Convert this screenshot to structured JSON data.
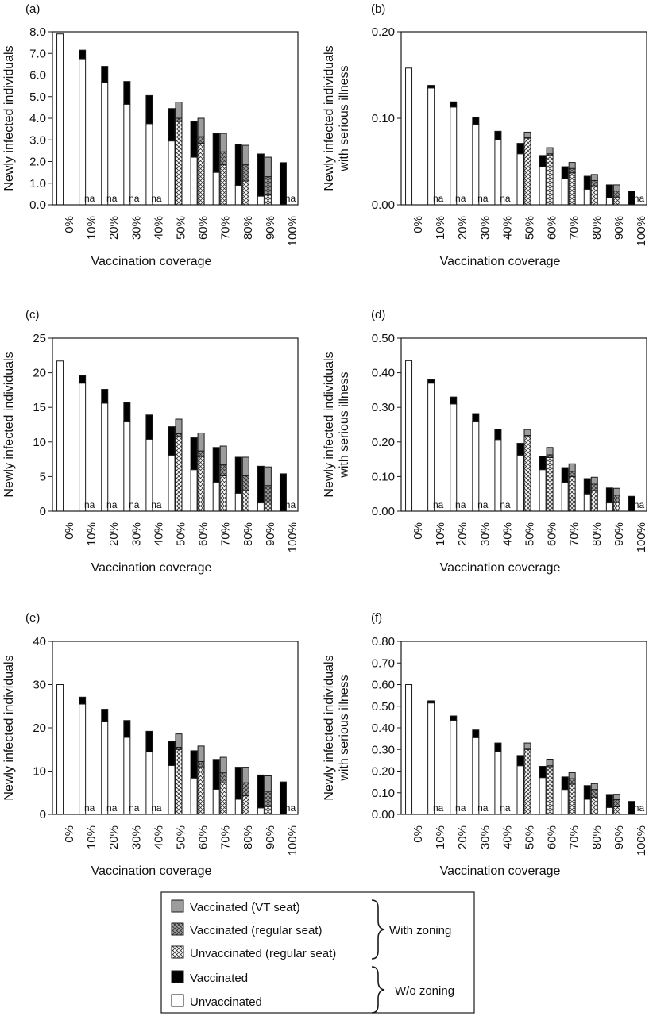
{
  "colors": {
    "unvaccinated": "#ffffff",
    "vaccinated": "#000000",
    "vt_seat": "#9c9c9c",
    "vaccinated_regular": "#9c9c9c",
    "stroke": "#1a1a1a"
  },
  "legend": {
    "items": [
      {
        "key": "vt_seat",
        "label": "Vaccinated (VT seat)"
      },
      {
        "key": "vac_regular",
        "label": "Vaccinated (regular seat)"
      },
      {
        "key": "unvac_regular",
        "label": "Unvaccinated (regular seat)"
      },
      {
        "key": "vaccinated",
        "label": "Vaccinated"
      },
      {
        "key": "unvaccinated",
        "label": "Unvaccinated"
      }
    ],
    "group_with": "With zoning",
    "group_without": "W/o zoning"
  },
  "na_text": "na",
  "chart_data": [
    {
      "panel": "(a)",
      "type": "bar",
      "stacked": true,
      "xlabel": "Vaccination coverage",
      "ylabel": [
        "Newly infected individuals"
      ],
      "ylim": [
        0,
        8
      ],
      "yticks": [
        "0.0",
        "1.0",
        "2.0",
        "3.0",
        "4.0",
        "5.0",
        "6.0",
        "7.0",
        "8.0"
      ],
      "categories": [
        "0%",
        "10%",
        "20%",
        "30%",
        "40%",
        "50%",
        "60%",
        "70%",
        "80%",
        "90%",
        "100%"
      ],
      "without_zoning": {
        "unvaccinated": [
          7.9,
          6.75,
          5.65,
          4.65,
          3.75,
          2.95,
          2.2,
          1.5,
          0.9,
          0.4,
          0.0
        ],
        "vaccinated": [
          0.0,
          0.4,
          0.75,
          1.05,
          1.3,
          1.5,
          1.65,
          1.8,
          1.9,
          1.95,
          1.95
        ]
      },
      "with_zoning": {
        "unvac_regular": [
          null,
          null,
          null,
          null,
          null,
          3.85,
          2.85,
          1.85,
          1.1,
          0.45,
          null
        ],
        "vac_regular": [
          null,
          null,
          null,
          null,
          null,
          0.15,
          0.3,
          0.6,
          0.75,
          0.85,
          null
        ],
        "vt_seat": [
          null,
          null,
          null,
          null,
          null,
          0.75,
          0.85,
          0.85,
          0.9,
          0.9,
          null
        ]
      },
      "na": [
        false,
        true,
        true,
        true,
        true,
        false,
        false,
        false,
        false,
        false,
        true
      ]
    },
    {
      "panel": "(b)",
      "type": "bar",
      "stacked": true,
      "xlabel": "Vaccination coverage",
      "ylabel": [
        "Newly infected individuals",
        "with serious illness"
      ],
      "ylim": [
        0,
        0.2
      ],
      "yticks": [
        "0.00",
        "0.10",
        "0.20"
      ],
      "categories": [
        "0%",
        "10%",
        "20%",
        "30%",
        "40%",
        "50%",
        "60%",
        "70%",
        "80%",
        "90%",
        "100%"
      ],
      "without_zoning": {
        "unvaccinated": [
          0.158,
          0.135,
          0.113,
          0.093,
          0.075,
          0.059,
          0.044,
          0.03,
          0.018,
          0.008,
          0.0
        ],
        "vaccinated": [
          0.0,
          0.003,
          0.006,
          0.008,
          0.01,
          0.012,
          0.013,
          0.014,
          0.015,
          0.015,
          0.016
        ]
      },
      "with_zoning": {
        "unvac_regular": [
          null,
          null,
          null,
          null,
          null,
          0.077,
          0.057,
          0.037,
          0.022,
          0.009,
          null
        ],
        "vac_regular": [
          null,
          null,
          null,
          null,
          null,
          0.001,
          0.002,
          0.005,
          0.006,
          0.007,
          null
        ],
        "vt_seat": [
          null,
          null,
          null,
          null,
          null,
          0.006,
          0.007,
          0.007,
          0.007,
          0.007,
          null
        ]
      },
      "na": [
        false,
        true,
        true,
        true,
        true,
        false,
        false,
        false,
        false,
        false,
        true
      ]
    },
    {
      "panel": "(c)",
      "type": "bar",
      "stacked": true,
      "xlabel": "Vaccination coverage",
      "ylabel": [
        "Newly infected individuals"
      ],
      "ylim": [
        0,
        25
      ],
      "yticks": [
        "0",
        "5",
        "10",
        "15",
        "20",
        "25"
      ],
      "categories": [
        "0%",
        "10%",
        "20%",
        "30%",
        "40%",
        "50%",
        "60%",
        "70%",
        "80%",
        "90%",
        "100%"
      ],
      "without_zoning": {
        "unvaccinated": [
          21.7,
          18.5,
          15.6,
          12.9,
          10.4,
          8.1,
          6.0,
          4.2,
          2.6,
          1.2,
          0.0
        ],
        "vaccinated": [
          0.0,
          1.1,
          2.0,
          2.8,
          3.5,
          4.1,
          4.6,
          5.0,
          5.2,
          5.3,
          5.4
        ]
      },
      "with_zoning": {
        "unvac_regular": [
          null,
          null,
          null,
          null,
          null,
          10.8,
          7.9,
          5.1,
          3.0,
          1.3,
          null
        ],
        "vac_regular": [
          null,
          null,
          null,
          null,
          null,
          0.4,
          0.8,
          1.6,
          2.1,
          2.4,
          null
        ],
        "vt_seat": [
          null,
          null,
          null,
          null,
          null,
          2.1,
          2.6,
          2.7,
          2.7,
          2.7,
          null
        ]
      },
      "na": [
        false,
        true,
        true,
        true,
        true,
        false,
        false,
        false,
        false,
        false,
        true
      ]
    },
    {
      "panel": "(d)",
      "type": "bar",
      "stacked": true,
      "xlabel": "Vaccination coverage",
      "ylabel": [
        "Newly infected individuals",
        "with serious illness"
      ],
      "ylim": [
        0,
        0.5
      ],
      "yticks": [
        "0.00",
        "0.10",
        "0.20",
        "0.30",
        "0.40",
        "0.50"
      ],
      "categories": [
        "0%",
        "10%",
        "20%",
        "30%",
        "40%",
        "50%",
        "60%",
        "70%",
        "80%",
        "90%",
        "100%"
      ],
      "without_zoning": {
        "unvaccinated": [
          0.435,
          0.37,
          0.31,
          0.258,
          0.207,
          0.162,
          0.12,
          0.083,
          0.05,
          0.024,
          0.0
        ],
        "vaccinated": [
          0.0,
          0.01,
          0.02,
          0.024,
          0.03,
          0.034,
          0.039,
          0.043,
          0.044,
          0.043,
          0.043
        ]
      },
      "with_zoning": {
        "unvac_regular": [
          null,
          null,
          null,
          null,
          null,
          0.215,
          0.155,
          0.1,
          0.06,
          0.025,
          null
        ],
        "vac_regular": [
          null,
          null,
          null,
          null,
          null,
          0.004,
          0.008,
          0.015,
          0.018,
          0.021,
          null
        ],
        "vt_seat": [
          null,
          null,
          null,
          null,
          null,
          0.017,
          0.021,
          0.022,
          0.02,
          0.02,
          null
        ]
      },
      "na": [
        false,
        true,
        true,
        true,
        true,
        false,
        false,
        false,
        false,
        false,
        true
      ]
    },
    {
      "panel": "(e)",
      "type": "bar",
      "stacked": true,
      "xlabel": "Vaccination coverage",
      "ylabel": [
        "Newly infected individuals"
      ],
      "ylim": [
        0,
        40
      ],
      "yticks": [
        "0",
        "10",
        "20",
        "30",
        "40"
      ],
      "categories": [
        "0%",
        "10%",
        "20%",
        "30%",
        "40%",
        "50%",
        "60%",
        "70%",
        "80%",
        "90%",
        "100%"
      ],
      "without_zoning": {
        "unvaccinated": [
          30.0,
          25.5,
          21.5,
          17.8,
          14.4,
          11.3,
          8.4,
          5.8,
          3.5,
          1.5,
          0.0
        ],
        "vaccinated": [
          0.0,
          1.6,
          2.8,
          3.9,
          4.8,
          5.6,
          6.3,
          6.9,
          7.4,
          7.6,
          7.5
        ]
      },
      "with_zoning": {
        "unvac_regular": [
          null,
          null,
          null,
          null,
          null,
          15.0,
          11.0,
          7.3,
          4.3,
          1.8,
          null
        ],
        "vac_regular": [
          null,
          null,
          null,
          null,
          null,
          0.5,
          1.2,
          2.3,
          3.0,
          3.5,
          null
        ],
        "vt_seat": [
          null,
          null,
          null,
          null,
          null,
          3.1,
          3.6,
          3.6,
          3.6,
          3.6,
          null
        ]
      },
      "na": [
        false,
        true,
        true,
        true,
        true,
        false,
        false,
        false,
        false,
        false,
        true
      ]
    },
    {
      "panel": "(f)",
      "type": "bar",
      "stacked": true,
      "xlabel": "Vaccination coverage",
      "ylabel": [
        "Newly infected individuals",
        "with serious illness"
      ],
      "ylim": [
        0,
        0.8
      ],
      "yticks": [
        "0.00",
        "0.10",
        "0.20",
        "0.30",
        "0.40",
        "0.50",
        "0.60",
        "0.70",
        "0.80"
      ],
      "categories": [
        "0%",
        "10%",
        "20%",
        "30%",
        "40%",
        "50%",
        "60%",
        "70%",
        "80%",
        "90%",
        "100%"
      ],
      "without_zoning": {
        "unvaccinated": [
          0.6,
          0.515,
          0.435,
          0.355,
          0.29,
          0.225,
          0.17,
          0.115,
          0.07,
          0.032,
          0.0
        ],
        "vaccinated": [
          0.0,
          0.01,
          0.02,
          0.035,
          0.04,
          0.047,
          0.052,
          0.058,
          0.063,
          0.06,
          0.06
        ]
      },
      "with_zoning": {
        "unvac_regular": [
          null,
          null,
          null,
          null,
          null,
          0.3,
          0.215,
          0.14,
          0.08,
          0.035,
          null
        ],
        "vac_regular": [
          null,
          null,
          null,
          null,
          null,
          0.005,
          0.01,
          0.025,
          0.035,
          0.033,
          null
        ],
        "vt_seat": [
          null,
          null,
          null,
          null,
          null,
          0.025,
          0.03,
          0.028,
          0.027,
          0.025,
          null
        ]
      },
      "na": [
        false,
        true,
        true,
        true,
        true,
        false,
        false,
        false,
        false,
        false,
        true
      ]
    }
  ]
}
